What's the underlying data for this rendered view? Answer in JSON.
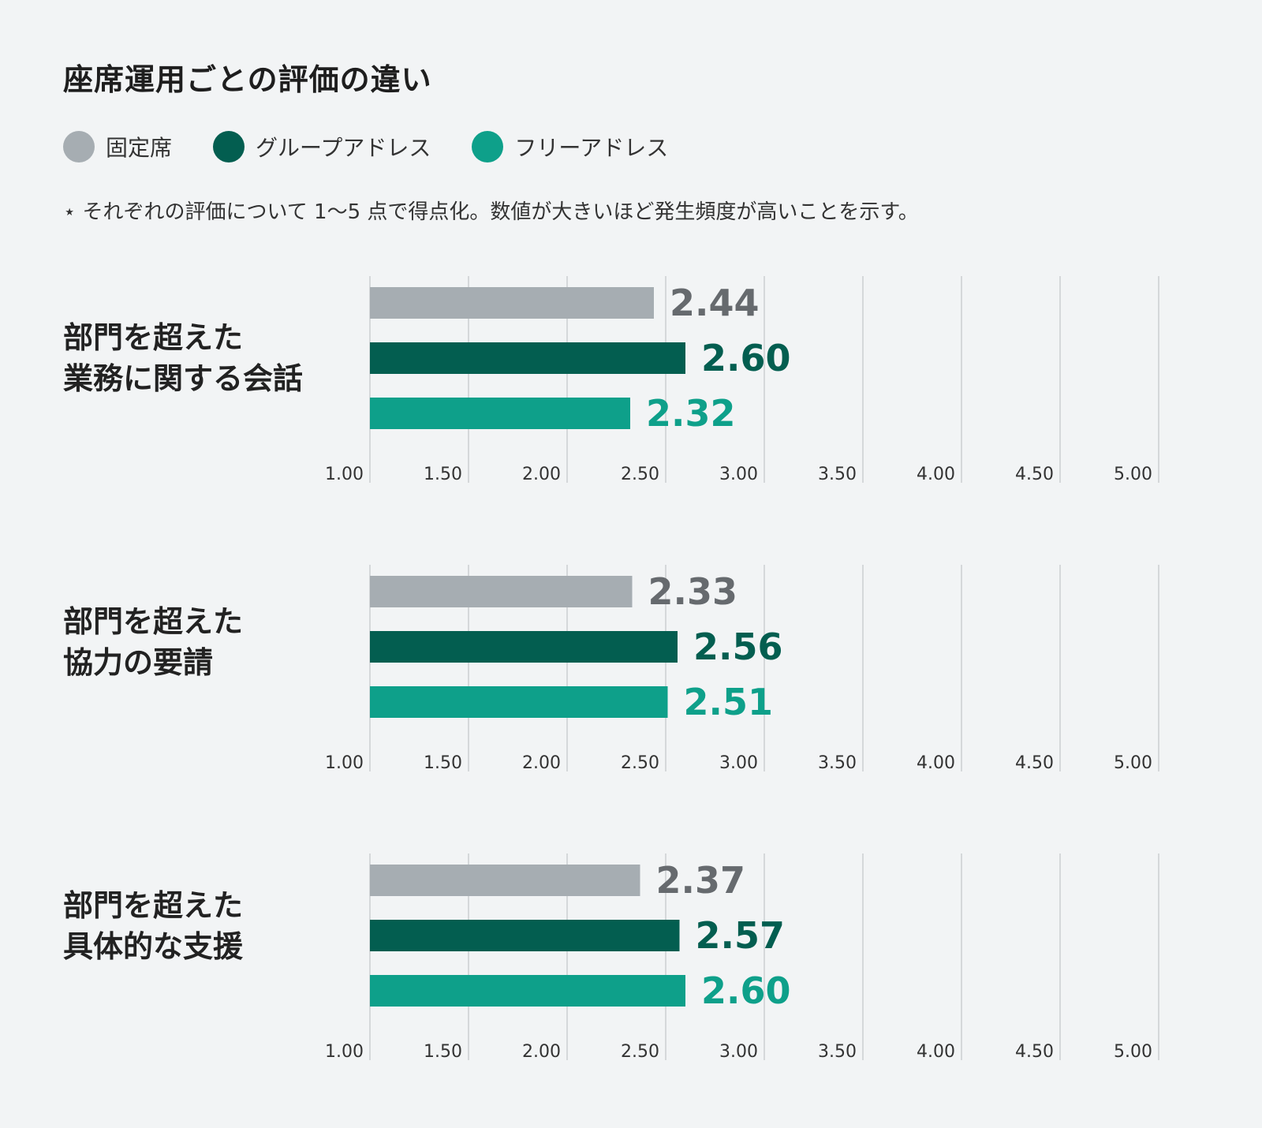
{
  "title": "座席運用ごとの評価の違い",
  "legend": [
    {
      "label": "固定席",
      "color": "#a6adb2"
    },
    {
      "label": "グループアドレス",
      "color": "#035e50"
    },
    {
      "label": "フリーアドレス",
      "color": "#0ea08a"
    }
  ],
  "note": "⋆ それぞれの評価について 1〜5 点で得点化。数値が大きいほど発生頻度が高いことを示す。",
  "chart_data": {
    "type": "bar",
    "orientation": "horizontal",
    "xlim": [
      1.0,
      5.0
    ],
    "ticks": [
      "1.00",
      "1.50",
      "2.00",
      "2.50",
      "3.00",
      "3.50",
      "4.00",
      "4.50",
      "5.00"
    ],
    "series_colors": [
      "#a6adb2",
      "#035e50",
      "#0ea08a"
    ],
    "label_colors": [
      "#666a6e",
      "#035e50",
      "#0ea08a"
    ],
    "groups": [
      {
        "label_lines": [
          "部門を超えた",
          "業務に関する会話"
        ],
        "values": [
          2.44,
          2.6,
          2.32
        ],
        "value_labels": [
          "2.44",
          "2.60",
          "2.32"
        ]
      },
      {
        "label_lines": [
          "部門を超えた",
          "協力の要請"
        ],
        "values": [
          2.33,
          2.56,
          2.51
        ],
        "value_labels": [
          "2.33",
          "2.56",
          "2.51"
        ]
      },
      {
        "label_lines": [
          "部門を超えた",
          "具体的な支援"
        ],
        "values": [
          2.37,
          2.57,
          2.6
        ],
        "value_labels": [
          "2.37",
          "2.57",
          "2.60"
        ]
      }
    ]
  }
}
